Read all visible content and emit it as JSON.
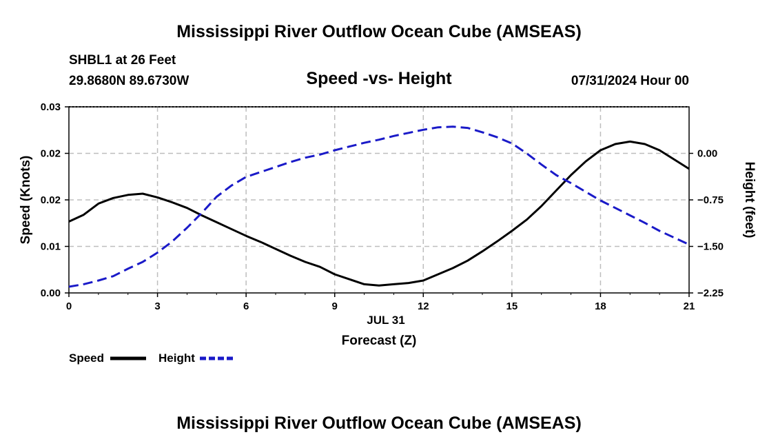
{
  "page": {
    "title_top": "Mississippi River Outflow Ocean Cube (AMSEAS)",
    "title_bottom": "Mississippi River Outflow Ocean Cube (AMSEAS)",
    "station": "SHBL1 at 26 Feet",
    "coords": "29.8680N  89.6730W",
    "datetime": "07/31/2024 Hour 00"
  },
  "chart_data": {
    "type": "line",
    "title": "Speed -vs- Height",
    "xlabel": "Forecast (Z)",
    "date_label": "JUL 31",
    "ylabel": "Speed (Knots)",
    "y2label": "Height (feet)",
    "xlim": [
      0,
      21
    ],
    "ylim": [
      0,
      0.03
    ],
    "y2lim": [
      -2.25,
      0.75
    ],
    "x_ticks": [
      0,
      3,
      6,
      9,
      12,
      15,
      18,
      21
    ],
    "x_tick_labels": [
      "0",
      "3",
      "6",
      "9",
      "12",
      "15",
      "18",
      "21"
    ],
    "y_ticks": [
      0,
      0.0075,
      0.015,
      0.0225,
      0.03
    ],
    "y_tick_labels": [
      "0.00",
      "0.01",
      "0.02",
      "0.02",
      "0.03"
    ],
    "y2_ticks": [
      -2.25,
      -1.5,
      -0.75,
      0.0
    ],
    "y2_tick_labels": [
      "−2.25",
      "−1.50",
      "−0.75",
      "0.00"
    ],
    "grid": true,
    "legend": {
      "position": "bottom-left",
      "items": [
        {
          "label": "Speed",
          "color": "#000000",
          "dash": "solid"
        },
        {
          "label": "Height",
          "color": "#1a1ac8",
          "dash": "dashed"
        }
      ]
    },
    "series": [
      {
        "name": "Speed",
        "axis": "left",
        "color": "#000000",
        "x": [
          0,
          0.5,
          1,
          1.5,
          2,
          2.5,
          3,
          3.5,
          4,
          4.5,
          5,
          5.5,
          6,
          6.5,
          7,
          7.5,
          8,
          8.5,
          9,
          9.5,
          10,
          10.5,
          11,
          11.5,
          12,
          12.5,
          13,
          13.5,
          14,
          14.5,
          15,
          15.5,
          16,
          16.5,
          17,
          17.5,
          18,
          18.5,
          19,
          19.5,
          20,
          20.5,
          21
        ],
        "values": [
          0.0115,
          0.0126,
          0.0144,
          0.0153,
          0.0158,
          0.016,
          0.0154,
          0.0146,
          0.0137,
          0.0125,
          0.0114,
          0.0103,
          0.0092,
          0.0082,
          0.0071,
          0.006,
          0.005,
          0.0042,
          0.003,
          0.0022,
          0.0014,
          0.0012,
          0.0014,
          0.0016,
          0.002,
          0.003,
          0.004,
          0.0052,
          0.0067,
          0.0083,
          0.01,
          0.0118,
          0.014,
          0.0165,
          0.019,
          0.0212,
          0.023,
          0.024,
          0.0244,
          0.024,
          0.023,
          0.0215,
          0.02
        ]
      },
      {
        "name": "Height",
        "axis": "right",
        "color": "#1a1ac8",
        "x": [
          0,
          0.5,
          1,
          1.5,
          2,
          2.5,
          3,
          3.5,
          4,
          4.5,
          5,
          5.5,
          6,
          6.5,
          7,
          7.5,
          8,
          8.5,
          9,
          9.5,
          10,
          10.5,
          11,
          11.5,
          12,
          12.5,
          13,
          13.5,
          14,
          14.5,
          15,
          15.5,
          16,
          16.5,
          17,
          17.5,
          18,
          18.5,
          19,
          19.5,
          20,
          20.5,
          21
        ],
        "values": [
          -2.15,
          -2.11,
          -2.05,
          -1.98,
          -1.86,
          -1.75,
          -1.6,
          -1.42,
          -1.2,
          -0.96,
          -0.7,
          -0.52,
          -0.38,
          -0.3,
          -0.22,
          -0.14,
          -0.07,
          -0.02,
          0.05,
          0.11,
          0.17,
          0.22,
          0.28,
          0.33,
          0.38,
          0.42,
          0.43,
          0.41,
          0.34,
          0.26,
          0.16,
          0.0,
          -0.18,
          -0.35,
          -0.48,
          -0.62,
          -0.76,
          -0.88,
          -1.0,
          -1.12,
          -1.25,
          -1.36,
          -1.47
        ]
      }
    ]
  }
}
